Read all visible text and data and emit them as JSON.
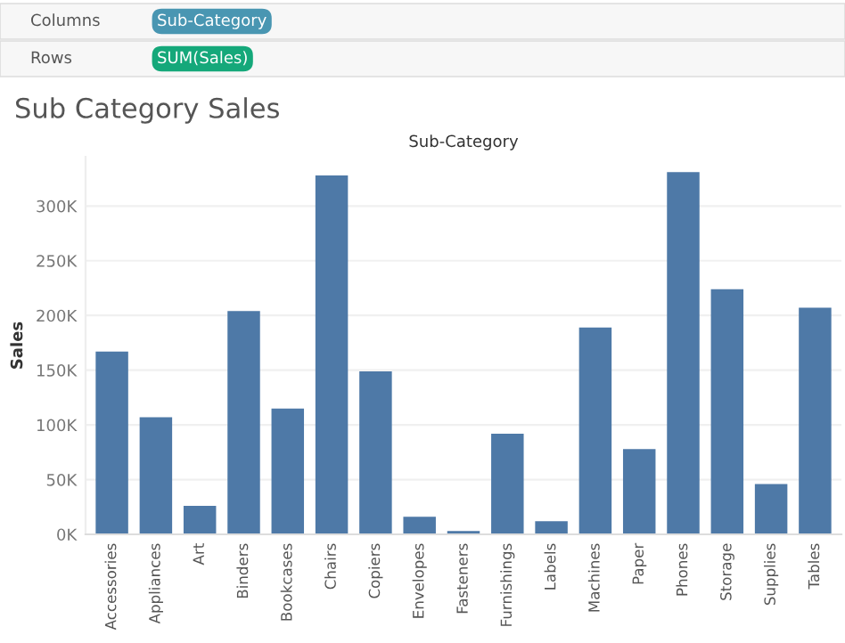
{
  "chart_data": {
    "type": "bar",
    "title": "Sub Category Sales",
    "xlabel": "Sub-Category",
    "ylabel": "Sales",
    "annotations": [
      "Columns",
      "Sub-Category",
      "Rows",
      "SUM(Sales)"
    ],
    "categories": [
      "Accessories",
      "Appliances",
      "Art",
      "Binders",
      "Bookcases",
      "Chairs",
      "Copiers",
      "Envelopes",
      "Fasteners",
      "Furnishings",
      "Labels",
      "Machines",
      "Paper",
      "Phones",
      "Storage",
      "Supplies",
      "Tables"
    ],
    "values": [
      167000,
      107000,
      26000,
      204000,
      115000,
      328000,
      149000,
      16000,
      3000,
      92000,
      12000,
      189000,
      78000,
      331000,
      224000,
      46000,
      207000
    ],
    "color": "#4e79a7",
    "ylim": [
      0,
      345000
    ],
    "yticks": [
      {
        "value": 0,
        "label": "0K"
      },
      {
        "value": 50000,
        "label": "50K"
      },
      {
        "value": 100000,
        "label": "100K"
      },
      {
        "value": 150000,
        "label": "150K"
      },
      {
        "value": 200000,
        "label": "200K"
      },
      {
        "value": 250000,
        "label": "250K"
      },
      {
        "value": 300000,
        "label": "300K"
      }
    ],
    "grid": "y",
    "legend": false
  }
}
